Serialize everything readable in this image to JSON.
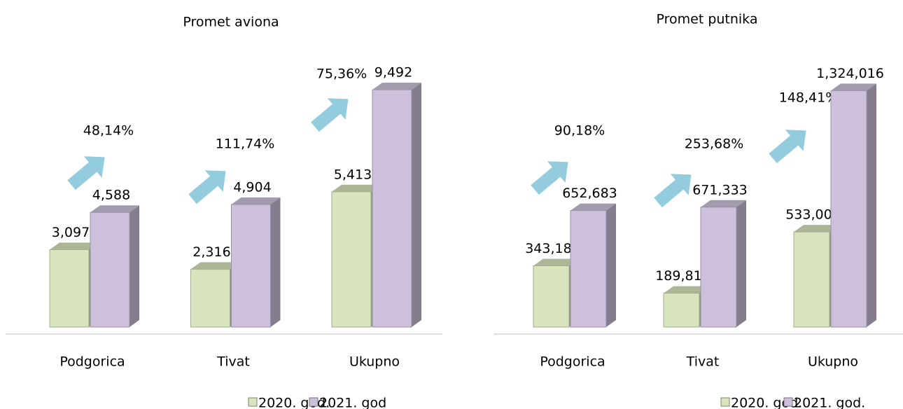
{
  "chart_data": [
    {
      "type": "bar3d",
      "title": "Promet aviona",
      "categories": [
        "Podgorica",
        "Tivat",
        "Ukupno"
      ],
      "series": [
        {
          "name": "2020. god.",
          "color": "#d7e4bd",
          "values": [
            3097,
            2316,
            5413
          ],
          "value_labels": [
            "3,097",
            "2,316",
            "5,413"
          ]
        },
        {
          "name": "2021. god",
          "color": "#ccc0da",
          "values": [
            4588,
            4904,
            9492
          ],
          "value_labels": [
            "4,588",
            "4,904",
            "9,492"
          ]
        }
      ],
      "annotations": [
        "48,14%",
        "111,74%",
        "75,36%"
      ],
      "ylim": [
        0,
        10000
      ]
    },
    {
      "type": "bar3d",
      "title": "Promet putnika",
      "categories": [
        "Podgorica",
        "Tivat",
        "Ukupno"
      ],
      "series": [
        {
          "name": "2020. god.",
          "color": "#d7e4bd",
          "values": [
            343187,
            189815,
            533002
          ],
          "value_labels": [
            "343,187",
            "189,815",
            "533,002"
          ]
        },
        {
          "name": "2021. god.",
          "color": "#ccc0da",
          "values": [
            652683,
            671333,
            1324016
          ],
          "value_labels": [
            "652,683",
            "671,333",
            "1,324,016"
          ]
        }
      ],
      "annotations": [
        "90,18%",
        "253,68%",
        "148,41%"
      ],
      "ylim": [
        0,
        1400000
      ]
    }
  ]
}
